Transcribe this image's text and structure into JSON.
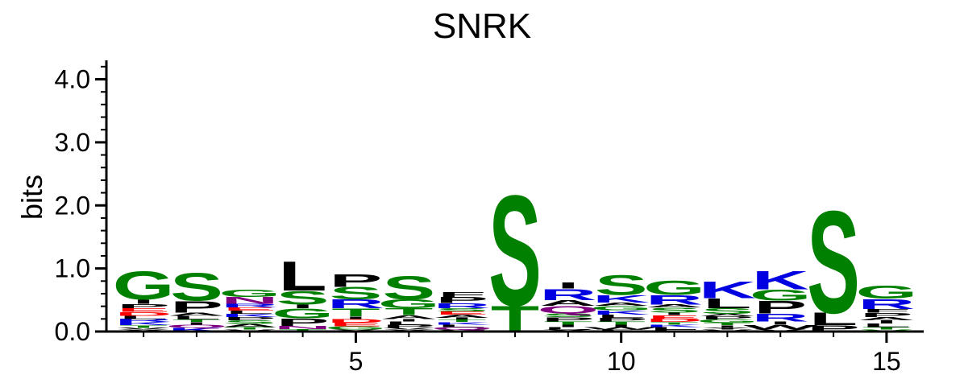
{
  "chart_data": {
    "type": "sequence-logo",
    "title": "SNRK",
    "ylabel": "bits",
    "ylim": [
      0,
      4.3
    ],
    "yticks": [
      {
        "value": 0.0,
        "label": "0.0"
      },
      {
        "value": 1.0,
        "label": "1.0"
      },
      {
        "value": 2.0,
        "label": "2.0"
      },
      {
        "value": 3.0,
        "label": "3.0"
      },
      {
        "value": 4.0,
        "label": "4.0"
      }
    ],
    "xlim": [
      0.3,
      15.7
    ],
    "xticks": [
      {
        "value": 5,
        "label": "5"
      },
      {
        "value": 10,
        "label": "10"
      },
      {
        "value": 15,
        "label": "15"
      }
    ],
    "colors": {
      "green": "#008000",
      "black": "#000000",
      "blue": "#0000e0",
      "red": "#ff0000",
      "purple": "#800080"
    },
    "positions": [
      {
        "pos": 1,
        "letters": [
          {
            "char": "Y",
            "height": 0.03,
            "color": "black"
          },
          {
            "char": "V",
            "height": 0.03,
            "color": "black"
          },
          {
            "char": "T",
            "height": 0.04,
            "color": "green"
          },
          {
            "char": "K",
            "height": 0.05,
            "color": "blue"
          },
          {
            "char": "R",
            "height": 0.05,
            "color": "blue"
          },
          {
            "char": "L",
            "height": 0.05,
            "color": "black"
          },
          {
            "char": "D",
            "height": 0.06,
            "color": "red"
          },
          {
            "char": "E",
            "height": 0.06,
            "color": "red"
          },
          {
            "char": "P",
            "height": 0.07,
            "color": "black"
          },
          {
            "char": "I",
            "height": 0.07,
            "color": "black"
          },
          {
            "char": "G",
            "height": 0.46,
            "color": "green"
          }
        ]
      },
      {
        "pos": 2,
        "letters": [
          {
            "char": "K",
            "height": 0.06,
            "color": "blue"
          },
          {
            "char": "Q",
            "height": 0.05,
            "color": "purple"
          },
          {
            "char": "I",
            "height": 0.04,
            "color": "black"
          },
          {
            "char": "T",
            "height": 0.04,
            "color": "green"
          },
          {
            "char": "L",
            "height": 0.06,
            "color": "black"
          },
          {
            "char": "A",
            "height": 0.05,
            "color": "black"
          },
          {
            "char": "P",
            "height": 0.19,
            "color": "black"
          },
          {
            "char": "S",
            "height": 0.45,
            "color": "green"
          }
        ]
      },
      {
        "pos": 3,
        "letters": [
          {
            "char": "V",
            "height": 0.03,
            "color": "black"
          },
          {
            "char": "T",
            "height": 0.04,
            "color": "green"
          },
          {
            "char": "A",
            "height": 0.05,
            "color": "black"
          },
          {
            "char": "S",
            "height": 0.06,
            "color": "green"
          },
          {
            "char": "P",
            "height": 0.05,
            "color": "black"
          },
          {
            "char": "K",
            "height": 0.05,
            "color": "blue"
          },
          {
            "char": "L",
            "height": 0.05,
            "color": "black"
          },
          {
            "char": "E",
            "height": 0.05,
            "color": "red"
          },
          {
            "char": "R",
            "height": 0.06,
            "color": "blue"
          },
          {
            "char": "N",
            "height": 0.11,
            "color": "purple"
          },
          {
            "char": "G",
            "height": 0.12,
            "color": "green"
          }
        ]
      },
      {
        "pos": 4,
        "letters": [
          {
            "char": "T",
            "height": 0.04,
            "color": "green"
          },
          {
            "char": "N",
            "height": 0.05,
            "color": "purple"
          },
          {
            "char": "P",
            "height": 0.12,
            "color": "black"
          },
          {
            "char": "G",
            "height": 0.16,
            "color": "green"
          },
          {
            "char": "I",
            "height": 0.06,
            "color": "black"
          },
          {
            "char": "S",
            "height": 0.22,
            "color": "green"
          },
          {
            "char": "L",
            "height": 0.48,
            "color": "black"
          }
        ]
      },
      {
        "pos": 5,
        "letters": [
          {
            "char": "Y",
            "height": 0.03,
            "color": "black"
          },
          {
            "char": "G",
            "height": 0.05,
            "color": "green"
          },
          {
            "char": "E",
            "height": 0.06,
            "color": "red"
          },
          {
            "char": "D",
            "height": 0.06,
            "color": "red"
          },
          {
            "char": "I",
            "height": 0.04,
            "color": "black"
          },
          {
            "char": "T",
            "height": 0.13,
            "color": "green"
          },
          {
            "char": "R",
            "height": 0.14,
            "color": "blue"
          },
          {
            "char": "S",
            "height": 0.2,
            "color": "green"
          },
          {
            "char": "P",
            "height": 0.2,
            "color": "black"
          }
        ]
      },
      {
        "pos": 6,
        "letters": [
          {
            "char": "Y",
            "height": 0.03,
            "color": "black"
          },
          {
            "char": "V",
            "height": 0.03,
            "color": "black"
          },
          {
            "char": "P",
            "height": 0.05,
            "color": "black"
          },
          {
            "char": "L",
            "height": 0.05,
            "color": "black"
          },
          {
            "char": "I",
            "height": 0.04,
            "color": "black"
          },
          {
            "char": "A",
            "height": 0.06,
            "color": "black"
          },
          {
            "char": "T",
            "height": 0.11,
            "color": "green"
          },
          {
            "char": "G",
            "height": 0.14,
            "color": "green"
          },
          {
            "char": "S",
            "height": 0.38,
            "color": "green"
          }
        ]
      },
      {
        "pos": 7,
        "letters": [
          {
            "char": "V",
            "height": 0.03,
            "color": "black"
          },
          {
            "char": "Q",
            "height": 0.04,
            "color": "purple"
          },
          {
            "char": "L",
            "height": 0.04,
            "color": "black"
          },
          {
            "char": "K",
            "height": 0.04,
            "color": "blue"
          },
          {
            "char": "T",
            "height": 0.04,
            "color": "green"
          },
          {
            "char": "I",
            "height": 0.03,
            "color": "black"
          },
          {
            "char": "A",
            "height": 0.05,
            "color": "black"
          },
          {
            "char": "E",
            "height": 0.05,
            "color": "red"
          },
          {
            "char": "S",
            "height": 0.05,
            "color": "green"
          },
          {
            "char": "R",
            "height": 0.08,
            "color": "blue"
          },
          {
            "char": "P",
            "height": 0.1,
            "color": "black"
          },
          {
            "char": "F",
            "height": 0.08,
            "color": "black"
          }
        ]
      },
      {
        "pos": 8,
        "letters": [
          {
            "char": "T",
            "height": 0.42,
            "color": "green"
          },
          {
            "char": "S",
            "height": 1.8,
            "color": "green"
          }
        ]
      },
      {
        "pos": 9,
        "letters": [
          {
            "char": "Y",
            "height": 0.03,
            "color": "black"
          },
          {
            "char": "L",
            "height": 0.04,
            "color": "black"
          },
          {
            "char": "I",
            "height": 0.04,
            "color": "black"
          },
          {
            "char": "T",
            "height": 0.05,
            "color": "green"
          },
          {
            "char": "P",
            "height": 0.07,
            "color": "black"
          },
          {
            "char": "S",
            "height": 0.06,
            "color": "green"
          },
          {
            "char": "Q",
            "height": 0.12,
            "color": "purple"
          },
          {
            "char": "A",
            "height": 0.09,
            "color": "black"
          },
          {
            "char": "R",
            "height": 0.18,
            "color": "blue"
          },
          {
            "char": "I",
            "height": 0.1,
            "color": "black"
          }
        ]
      },
      {
        "pos": 10,
        "letters": [
          {
            "char": "F",
            "height": 0.03,
            "color": "black"
          },
          {
            "char": "W",
            "height": 0.04,
            "color": "black"
          },
          {
            "char": "I",
            "height": 0.04,
            "color": "black"
          },
          {
            "char": "T",
            "height": 0.05,
            "color": "green"
          },
          {
            "char": "P",
            "height": 0.06,
            "color": "black"
          },
          {
            "char": "L",
            "height": 0.05,
            "color": "black"
          },
          {
            "char": "K",
            "height": 0.07,
            "color": "blue"
          },
          {
            "char": "G",
            "height": 0.07,
            "color": "green"
          },
          {
            "char": "A",
            "height": 0.05,
            "color": "black"
          },
          {
            "char": "K",
            "height": 0.12,
            "color": "blue"
          },
          {
            "char": "S",
            "height": 0.32,
            "color": "green"
          }
        ]
      },
      {
        "pos": 11,
        "letters": [
          {
            "char": "F",
            "height": 0.03,
            "color": "black"
          },
          {
            "char": "L",
            "height": 0.04,
            "color": "black"
          },
          {
            "char": "K",
            "height": 0.04,
            "color": "blue"
          },
          {
            "char": "T",
            "height": 0.04,
            "color": "green"
          },
          {
            "char": "D",
            "height": 0.05,
            "color": "red"
          },
          {
            "char": "E",
            "height": 0.06,
            "color": "red"
          },
          {
            "char": "I",
            "height": 0.04,
            "color": "black"
          },
          {
            "char": "S",
            "height": 0.08,
            "color": "green"
          },
          {
            "char": "A",
            "height": 0.05,
            "color": "black"
          },
          {
            "char": "R",
            "height": 0.15,
            "color": "blue"
          },
          {
            "char": "G",
            "height": 0.23,
            "color": "green"
          }
        ]
      },
      {
        "pos": 12,
        "letters": [
          {
            "char": "V",
            "height": 0.03,
            "color": "black"
          },
          {
            "char": "Y",
            "height": 0.03,
            "color": "black"
          },
          {
            "char": "I",
            "height": 0.04,
            "color": "black"
          },
          {
            "char": "T",
            "height": 0.04,
            "color": "green"
          },
          {
            "char": "G",
            "height": 0.05,
            "color": "green"
          },
          {
            "char": "P",
            "height": 0.05,
            "color": "black"
          },
          {
            "char": "A",
            "height": 0.04,
            "color": "black"
          },
          {
            "char": "S",
            "height": 0.09,
            "color": "green"
          },
          {
            "char": "L",
            "height": 0.16,
            "color": "black"
          },
          {
            "char": "K",
            "height": 0.27,
            "color": "blue"
          }
        ]
      },
      {
        "pos": 13,
        "letters": [
          {
            "char": "V",
            "height": 0.04,
            "color": "black"
          },
          {
            "char": "W",
            "height": 0.07,
            "color": "black"
          },
          {
            "char": "I",
            "height": 0.05,
            "color": "black"
          },
          {
            "char": "R",
            "height": 0.13,
            "color": "blue"
          },
          {
            "char": "P",
            "height": 0.2,
            "color": "black"
          },
          {
            "char": "G",
            "height": 0.18,
            "color": "green"
          },
          {
            "char": "K",
            "height": 0.3,
            "color": "blue"
          }
        ]
      },
      {
        "pos": 14,
        "letters": [
          {
            "char": "P",
            "height": 0.1,
            "color": "black"
          },
          {
            "char": "L",
            "height": 0.2,
            "color": "black"
          },
          {
            "char": "S",
            "height": 1.67,
            "color": "green"
          }
        ]
      },
      {
        "pos": 15,
        "letters": [
          {
            "char": "V",
            "height": 0.03,
            "color": "green"
          },
          {
            "char": "T",
            "height": 0.04,
            "color": "green"
          },
          {
            "char": "L",
            "height": 0.06,
            "color": "black"
          },
          {
            "char": "I",
            "height": 0.05,
            "color": "black"
          },
          {
            "char": "A",
            "height": 0.05,
            "color": "black"
          },
          {
            "char": "P",
            "height": 0.07,
            "color": "black"
          },
          {
            "char": "F",
            "height": 0.06,
            "color": "black"
          },
          {
            "char": "R",
            "height": 0.16,
            "color": "blue"
          },
          {
            "char": "G",
            "height": 0.21,
            "color": "green"
          }
        ]
      }
    ]
  }
}
